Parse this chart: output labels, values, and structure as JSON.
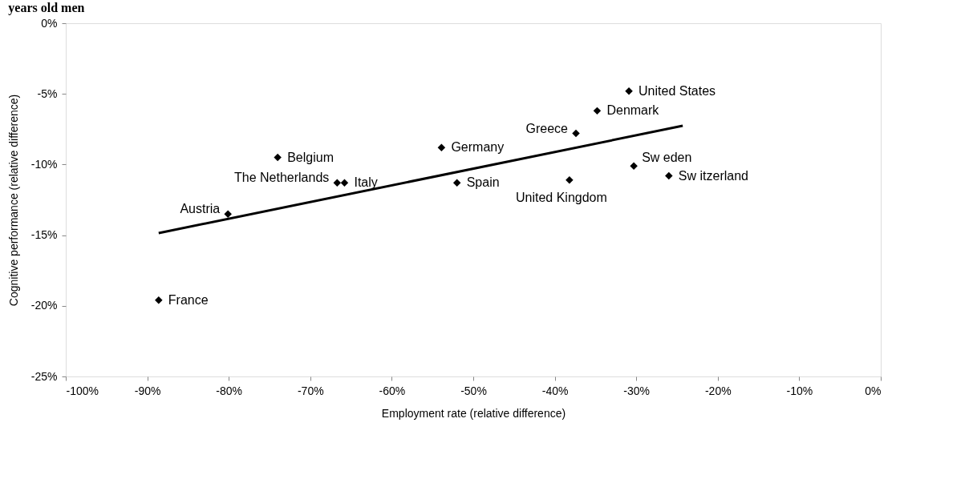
{
  "chart_data": {
    "type": "scatter",
    "title": "years old men",
    "xlabel": "Employment rate (relative difference)",
    "ylabel": "Cognitive performance (relative difference)",
    "series": [
      {
        "color": "#000000",
        "marker": "diamond",
        "x": [
          -88.6,
          -80.1,
          -74.0,
          -66.7,
          -65.8,
          -53.9,
          -52.0,
          -37.4,
          -38.2,
          -34.8,
          -30.9,
          -30.3,
          -26.0
        ],
        "values": [
          -19.6,
          -13.5,
          -9.5,
          -11.3,
          -11.3,
          -8.8,
          -11.3,
          -7.8,
          -11.1,
          -6.2,
          -4.8,
          -10.1,
          -10.8
        ]
      },
      {
        "type": "line",
        "color": "#000000",
        "line_style": "solid",
        "x": [
          -88.6,
          -24.3
        ],
        "values": [
          -14.85,
          -7.26
        ]
      }
    ],
    "annotations": [
      {
        "text": "France",
        "x": -88.6,
        "y": -19.6
      },
      {
        "text": "Austria",
        "x": -80.1,
        "y": -13.5
      },
      {
        "text": "Belgium",
        "x": -74.0,
        "y": -9.5
      },
      {
        "text": "The Netherlands",
        "x": -66.7,
        "y": -11.3
      },
      {
        "text": "Italy",
        "x": -65.8,
        "y": -11.3
      },
      {
        "text": "Germany",
        "x": -53.9,
        "y": -8.8
      },
      {
        "text": "Spain",
        "x": -52.0,
        "y": -11.3
      },
      {
        "text": "Greece",
        "x": -37.4,
        "y": -7.8
      },
      {
        "text": "United Kingdom",
        "x": -38.2,
        "y": -11.1
      },
      {
        "text": "Denmark",
        "x": -34.8,
        "y": -6.2
      },
      {
        "text": "United States",
        "x": -30.9,
        "y": -4.8
      },
      {
        "text": "Sw eden",
        "x": -30.3,
        "y": -10.1
      },
      {
        "text": "Sw itzerland",
        "x": -26.0,
        "y": -10.8
      }
    ],
    "xlim": [
      -100,
      0
    ],
    "ylim": [
      -25,
      0
    ],
    "xticks": [
      {
        "value": -100,
        "label": "-100%"
      },
      {
        "value": -90,
        "label": "-90%"
      },
      {
        "value": -80,
        "label": "-80%"
      },
      {
        "value": -70,
        "label": "-70%"
      },
      {
        "value": -60,
        "label": "-60%"
      },
      {
        "value": -50,
        "label": "-50%"
      },
      {
        "value": -40,
        "label": "-40%"
      },
      {
        "value": -30,
        "label": "-30%"
      },
      {
        "value": -20,
        "label": "-20%"
      },
      {
        "value": -10,
        "label": "-10%"
      },
      {
        "value": 0,
        "label": "0%"
      }
    ],
    "yticks": [
      {
        "value": -25,
        "label": "-25%"
      },
      {
        "value": -20,
        "label": "-20%"
      },
      {
        "value": -15,
        "label": "-15%"
      },
      {
        "value": -10,
        "label": "-10%"
      },
      {
        "value": -5,
        "label": "-5%"
      },
      {
        "value": 0,
        "label": "0%"
      }
    ],
    "grid": false
  }
}
